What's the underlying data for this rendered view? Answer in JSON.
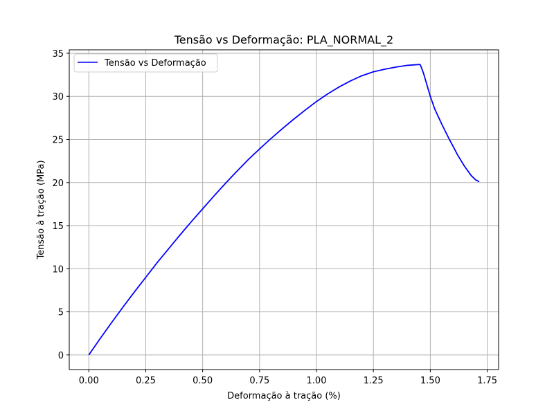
{
  "chart_data": {
    "type": "line",
    "title": "Tensão vs Deformação: PLA_NORMAL_2",
    "xlabel": "Deformação à tração (%)",
    "ylabel": "Tensão à tração (MPa)",
    "xlim": [
      -0.086,
      1.8
    ],
    "ylim": [
      -1.7,
      35.4
    ],
    "x_ticks": [
      0.0,
      0.25,
      0.5,
      0.75,
      1.0,
      1.25,
      1.5,
      1.75
    ],
    "x_tick_labels": [
      "0.00",
      "0.25",
      "0.50",
      "0.75",
      "1.00",
      "1.25",
      "1.50",
      "1.75"
    ],
    "y_ticks": [
      0,
      5,
      10,
      15,
      20,
      25,
      30,
      35
    ],
    "y_tick_labels": [
      "0",
      "5",
      "10",
      "15",
      "20",
      "25",
      "30",
      "35"
    ],
    "grid": true,
    "legend_position": "top-left",
    "series": [
      {
        "name": "Tensão vs Deformação",
        "color": "#0000ff",
        "x": [
          0.0,
          0.05,
          0.1,
          0.15,
          0.2,
          0.25,
          0.3,
          0.35,
          0.4,
          0.45,
          0.5,
          0.55,
          0.6,
          0.65,
          0.7,
          0.75,
          0.8,
          0.85,
          0.9,
          0.95,
          1.0,
          1.05,
          1.1,
          1.15,
          1.2,
          1.25,
          1.3,
          1.35,
          1.4,
          1.45,
          1.455,
          1.46,
          1.47,
          1.48,
          1.5,
          1.52,
          1.55,
          1.58,
          1.6,
          1.62,
          1.65,
          1.68,
          1.7,
          1.715
        ],
        "y": [
          0.0,
          1.9,
          3.75,
          5.55,
          7.3,
          9.0,
          10.7,
          12.3,
          13.9,
          15.45,
          16.95,
          18.45,
          19.9,
          21.3,
          22.65,
          23.9,
          25.1,
          26.25,
          27.35,
          28.4,
          29.4,
          30.3,
          31.1,
          31.8,
          32.4,
          32.85,
          33.15,
          33.4,
          33.6,
          33.7,
          33.7,
          33.4,
          32.7,
          31.8,
          30.0,
          28.5,
          26.8,
          25.2,
          24.2,
          23.2,
          21.9,
          20.8,
          20.3,
          20.1
        ]
      }
    ]
  }
}
